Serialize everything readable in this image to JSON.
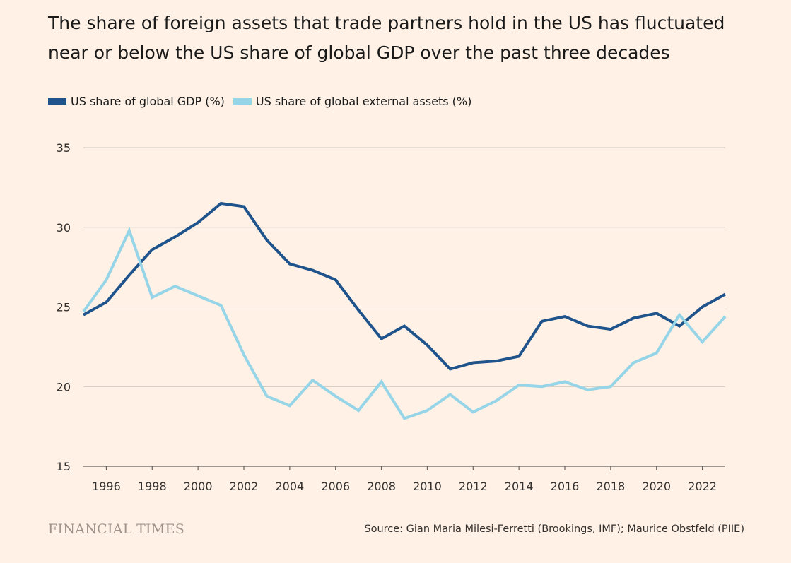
{
  "title": "The share of foreign assets that trade partners hold in the US has fluctuated near or below the US share of global GDP over the past three decades",
  "brand": "FINANCIAL TIMES",
  "source": "Source: Gian Maria Milesi-Ferretti (Brookings, IMF); Maurice Obstfeld (PIIE)",
  "colors": {
    "background": "#fff1e5",
    "gdp": "#1f538c",
    "assets": "#96d5e8"
  },
  "chart_data": {
    "type": "line",
    "x": [
      1995,
      1996,
      1997,
      1998,
      1999,
      2000,
      2001,
      2002,
      2003,
      2004,
      2005,
      2006,
      2007,
      2008,
      2009,
      2010,
      2011,
      2012,
      2013,
      2014,
      2015,
      2016,
      2017,
      2018,
      2019,
      2020,
      2021,
      2022,
      2023
    ],
    "series": [
      {
        "name": "US share of global GDP (%)",
        "color": "#1f538c",
        "values": [
          24.5,
          25.3,
          27.0,
          28.6,
          29.4,
          30.3,
          31.5,
          31.3,
          29.2,
          27.7,
          27.3,
          26.7,
          24.8,
          23.0,
          23.8,
          22.6,
          21.1,
          21.5,
          21.6,
          21.9,
          24.1,
          24.4,
          23.8,
          23.6,
          24.3,
          24.6,
          23.8,
          25.0,
          25.8
        ]
      },
      {
        "name": "US share of global external assets (%)",
        "color": "#96d5e8",
        "values": [
          24.7,
          26.7,
          29.8,
          25.6,
          26.3,
          25.7,
          25.1,
          22.0,
          19.4,
          18.8,
          20.4,
          19.4,
          18.5,
          20.3,
          18.0,
          18.5,
          19.5,
          18.4,
          19.1,
          20.1,
          20.0,
          20.3,
          19.8,
          20.0,
          21.5,
          22.1,
          24.5,
          22.8,
          24.4
        ]
      }
    ],
    "ylim": [
      15,
      35
    ],
    "yticks": [
      35,
      30,
      25,
      20,
      15
    ],
    "xlim": [
      1995,
      2023
    ],
    "xticks": [
      1996,
      1998,
      2000,
      2002,
      2004,
      2006,
      2008,
      2010,
      2012,
      2014,
      2016,
      2018,
      2020,
      2022
    ],
    "grid": true,
    "legend_position": "top-left"
  }
}
